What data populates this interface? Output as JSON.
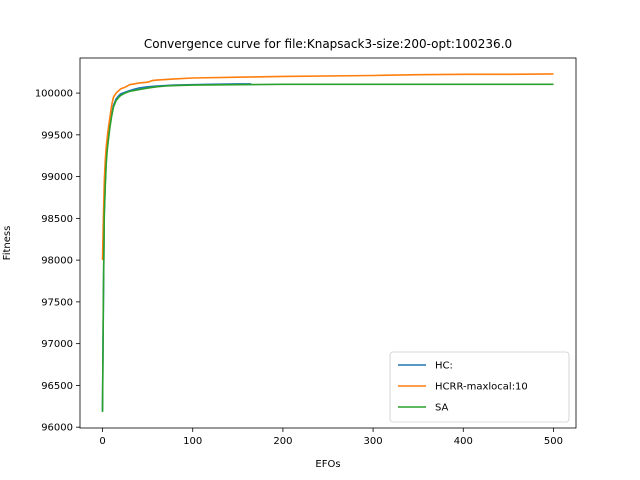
{
  "chart_data": {
    "type": "line",
    "title": "Convergence curve for file:Knapsack3-size:200-opt:100236.0",
    "xlabel": "EFOs",
    "ylabel": "Fitness",
    "xlim": [
      -25,
      525
    ],
    "ylim": [
      95990,
      100420
    ],
    "xticks": [
      0,
      100,
      200,
      300,
      400,
      500
    ],
    "yticks": [
      96000,
      96500,
      97000,
      97500,
      98000,
      98500,
      99000,
      99500,
      100000
    ],
    "grid": false,
    "legend_position": "lower-right",
    "series": [
      {
        "name": "HC:",
        "color": "#1f77b4",
        "x": [
          0,
          1,
          2,
          3,
          4,
          5,
          6,
          8,
          10,
          12,
          15,
          18,
          20,
          25,
          30,
          35,
          40,
          50,
          60,
          70,
          80,
          100,
          120,
          150,
          165
        ],
        "y": [
          96200,
          97500,
          98600,
          98950,
          99200,
          99350,
          99450,
          99600,
          99750,
          99850,
          99930,
          99970,
          99990,
          100010,
          100030,
          100045,
          100060,
          100075,
          100085,
          100090,
          100095,
          100100,
          100105,
          100110,
          100110
        ]
      },
      {
        "name": "HCRR-maxlocal:10",
        "color": "#ff7f0e",
        "x": [
          0,
          1,
          2,
          3,
          4,
          5,
          6,
          8,
          10,
          12,
          15,
          18,
          20,
          25,
          30,
          35,
          40,
          50,
          55,
          60,
          80,
          100,
          150,
          200,
          300,
          350,
          400,
          450,
          500
        ],
        "y": [
          98000,
          98500,
          98950,
          99200,
          99350,
          99450,
          99550,
          99700,
          99850,
          99950,
          100000,
          100030,
          100050,
          100070,
          100100,
          100110,
          100120,
          100130,
          100150,
          100155,
          100170,
          100180,
          100190,
          100200,
          100210,
          100220,
          100225,
          100225,
          100230
        ]
      },
      {
        "name": "SA",
        "color": "#2ca02c",
        "x": [
          0,
          1,
          2,
          3,
          4,
          5,
          6,
          8,
          10,
          12,
          15,
          18,
          20,
          25,
          30,
          40,
          50,
          60,
          70,
          80,
          100,
          150,
          200,
          300,
          400,
          500
        ],
        "y": [
          96180,
          97600,
          98550,
          98900,
          99150,
          99300,
          99400,
          99580,
          99720,
          99830,
          99910,
          99950,
          99970,
          100000,
          100020,
          100040,
          100060,
          100075,
          100085,
          100090,
          100095,
          100100,
          100105,
          100105,
          100105,
          100105
        ]
      }
    ]
  }
}
